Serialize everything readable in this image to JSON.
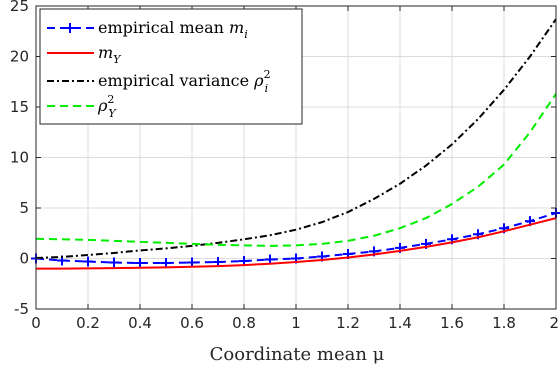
{
  "chart_data": {
    "type": "line",
    "xlabel": "Coordinate mean μ",
    "xlim": [
      0,
      2
    ],
    "ylim": [
      -5,
      25
    ],
    "xticks": [
      "0",
      "0.2",
      "0.4",
      "0.6",
      "0.8",
      "1",
      "1.2",
      "1.4",
      "1.6",
      "1.8",
      "2"
    ],
    "yticks": [
      "-5",
      "0",
      "5",
      "10",
      "15",
      "20",
      "25"
    ],
    "grid": true,
    "legend_position": "top-left",
    "series": [
      {
        "name": "empirical mean m_i",
        "legend_main": "empirical mean ",
        "legend_math": "m",
        "legend_sub": "i",
        "legend_sup": "",
        "color": "#0000ff",
        "style": "dashed-plus",
        "x": [
          0,
          0.1,
          0.2,
          0.3,
          0.4,
          0.5,
          0.6,
          0.7,
          0.8,
          0.9,
          1.0,
          1.1,
          1.2,
          1.3,
          1.4,
          1.5,
          1.6,
          1.7,
          1.8,
          1.9,
          2.0
        ],
        "y": [
          0.0,
          -0.2,
          -0.3,
          -0.4,
          -0.45,
          -0.45,
          -0.4,
          -0.35,
          -0.25,
          -0.1,
          0.0,
          0.2,
          0.45,
          0.7,
          1.05,
          1.45,
          1.9,
          2.4,
          3.0,
          3.7,
          4.5
        ]
      },
      {
        "name": "m_Y",
        "legend_main": "",
        "legend_math": "m",
        "legend_sub": "Y",
        "legend_sup": "",
        "color": "#ff0000",
        "style": "solid",
        "x": [
          0,
          0.1,
          0.2,
          0.3,
          0.4,
          0.5,
          0.6,
          0.7,
          0.8,
          0.9,
          1.0,
          1.1,
          1.2,
          1.3,
          1.4,
          1.5,
          1.6,
          1.7,
          1.8,
          1.9,
          2.0
        ],
        "y": [
          -1.0,
          -1.0,
          -0.98,
          -0.95,
          -0.92,
          -0.88,
          -0.82,
          -0.75,
          -0.65,
          -0.52,
          -0.35,
          -0.15,
          0.1,
          0.4,
          0.75,
          1.15,
          1.6,
          2.1,
          2.7,
          3.35,
          4.0
        ]
      },
      {
        "name": "empirical variance ρ_i^2",
        "legend_main": "empirical variance ",
        "legend_math": "ρ",
        "legend_sub": "i",
        "legend_sup": "2",
        "color": "#000000",
        "style": "dashdot",
        "x": [
          0,
          0.1,
          0.2,
          0.3,
          0.4,
          0.5,
          0.6,
          0.7,
          0.8,
          0.9,
          1.0,
          1.1,
          1.2,
          1.3,
          1.4,
          1.5,
          1.6,
          1.7,
          1.8,
          1.9,
          2.0
        ],
        "y": [
          0.05,
          0.15,
          0.35,
          0.55,
          0.8,
          1.0,
          1.25,
          1.55,
          1.9,
          2.3,
          2.85,
          3.6,
          4.6,
          5.9,
          7.4,
          9.2,
          11.3,
          13.8,
          16.7,
          20.0,
          23.7
        ]
      },
      {
        "name": "ρ_Y^2",
        "legend_main": "",
        "legend_math": "ρ",
        "legend_sub": "Y",
        "legend_sup": "2",
        "color": "#00ee00",
        "style": "dashed",
        "x": [
          0,
          0.1,
          0.2,
          0.3,
          0.4,
          0.5,
          0.6,
          0.7,
          0.8,
          0.9,
          1.0,
          1.1,
          1.2,
          1.3,
          1.4,
          1.5,
          1.6,
          1.7,
          1.8,
          1.9,
          2.0
        ],
        "y": [
          1.95,
          1.9,
          1.85,
          1.75,
          1.65,
          1.55,
          1.45,
          1.35,
          1.3,
          1.25,
          1.3,
          1.45,
          1.75,
          2.25,
          3.0,
          4.0,
          5.4,
          7.1,
          9.3,
          12.5,
          16.3
        ]
      }
    ]
  }
}
